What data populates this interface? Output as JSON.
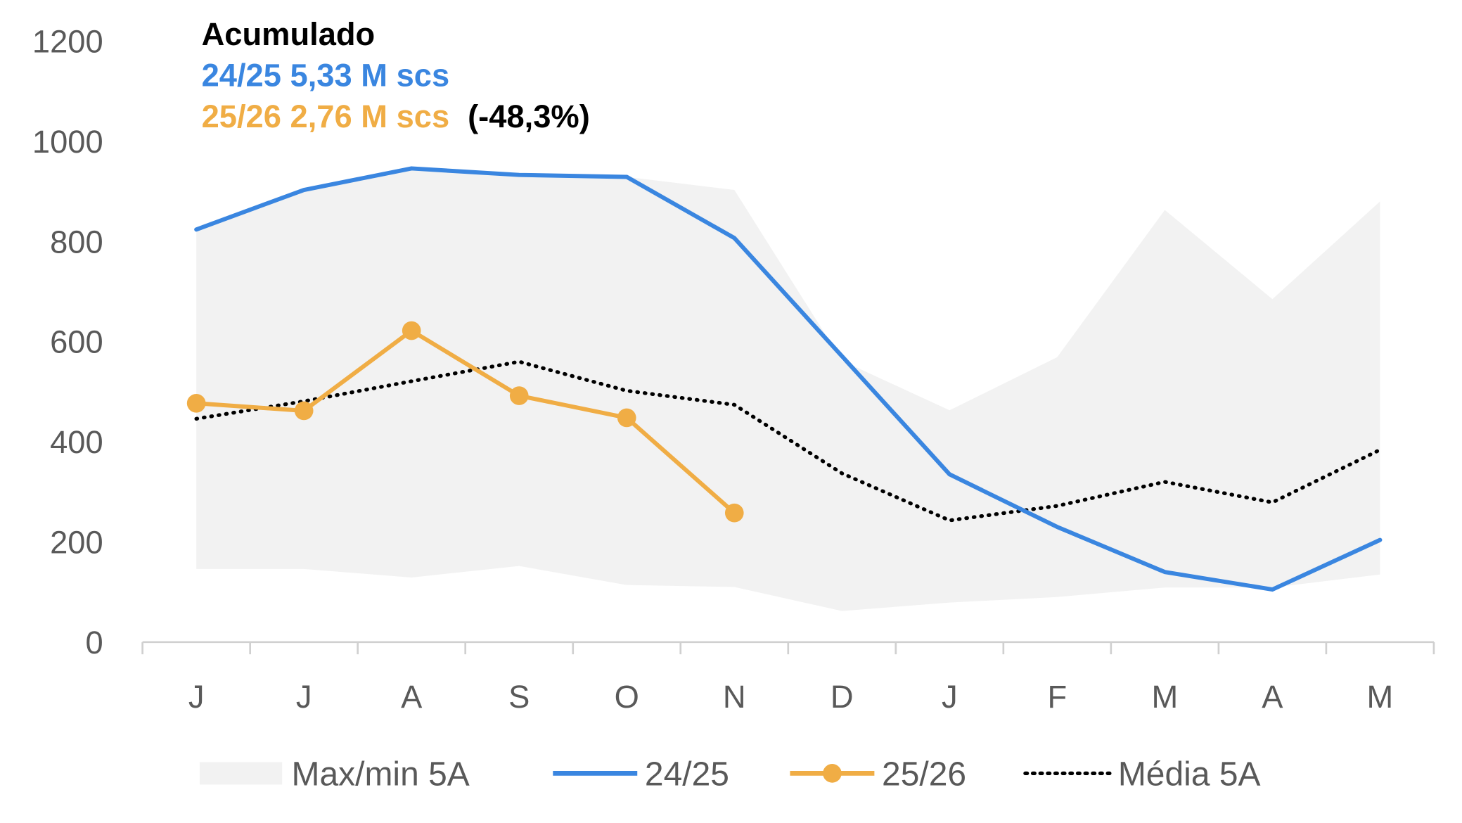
{
  "chart_data": {
    "type": "line",
    "title": "Acumulado",
    "annotations": {
      "line1": "24/25 5,33 M scs",
      "line2": "25/26 2,76 M scs",
      "line2_change": "(-48,3%)"
    },
    "categories": [
      "J",
      "J",
      "A",
      "S",
      "O",
      "N",
      "D",
      "J",
      "F",
      "M",
      "A",
      "M"
    ],
    "ylim": [
      0,
      1200
    ],
    "yticks": [
      0,
      200,
      400,
      600,
      800,
      1000,
      1200
    ],
    "xlabel": "",
    "ylabel": "",
    "grid": false,
    "legend_position": "bottom",
    "band": {
      "name": "Max/min 5A",
      "max": [
        824,
        903,
        946,
        933,
        929,
        903,
        562,
        463,
        569,
        863,
        685,
        880
      ],
      "min": [
        146,
        146,
        129,
        152,
        114,
        110,
        62,
        79,
        90,
        109,
        109,
        135
      ],
      "color": "#f2f2f2"
    },
    "series": [
      {
        "name": "24/25",
        "color": "#3a86e0",
        "style": "solid",
        "markers": false,
        "values": [
          824,
          903,
          946,
          933,
          929,
          807,
          571,
          335,
          230,
          140,
          105,
          204
        ]
      },
      {
        "name": "25/26",
        "color": "#f0ad45",
        "style": "solid",
        "markers": true,
        "values": [
          477,
          462,
          622,
          492,
          448,
          258,
          null,
          null,
          null,
          null,
          null,
          null
        ]
      },
      {
        "name": "Média 5A",
        "color": "#000000",
        "style": "dotted",
        "markers": false,
        "values": [
          446,
          481,
          521,
          560,
          502,
          474,
          337,
          243,
          272,
          320,
          279,
          384
        ]
      }
    ]
  }
}
